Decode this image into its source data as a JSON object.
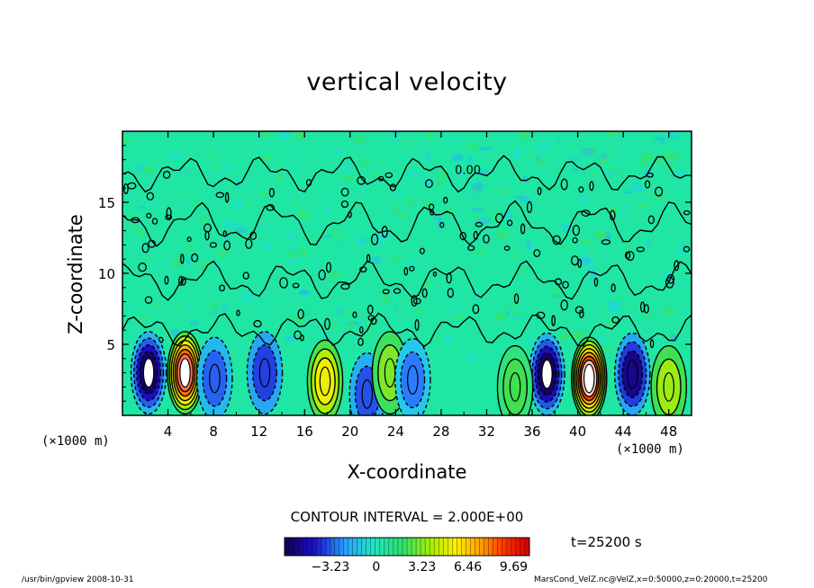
{
  "chart_data": {
    "type": "heatmap",
    "title": "vertical velocity",
    "xlabel": "X-coordinate",
    "ylabel": "Z-coordinate",
    "x_unit": "(×1000 m)",
    "xlim": [
      0,
      50
    ],
    "ylim": [
      0,
      20
    ],
    "x_ticks": [
      4,
      8,
      12,
      16,
      20,
      24,
      28,
      32,
      36,
      40,
      44,
      48
    ],
    "y_ticks": [
      5,
      10,
      15
    ],
    "contour_interval_label": "CONTOUR INTERVAL = 2.000E+00",
    "contour_label": "0.00",
    "colorbar": {
      "ticks": [
        -3.23,
        0,
        3.23,
        6.46,
        9.69
      ],
      "range": [
        -6.46,
        10.8
      ]
    },
    "time_label": "t=25200 s",
    "features": [
      {
        "x": 2.3,
        "z": 3.0,
        "value": -6.2
      },
      {
        "x": 5.5,
        "z": 3.0,
        "value": 9.9
      },
      {
        "x": 8.1,
        "z": 2.6,
        "value": -3.0
      },
      {
        "x": 12.5,
        "z": 3.0,
        "value": -3.6
      },
      {
        "x": 17.8,
        "z": 2.4,
        "value": 5.0
      },
      {
        "x": 21.5,
        "z": 1.5,
        "value": -3.3
      },
      {
        "x": 23.5,
        "z": 3.0,
        "value": 2.5
      },
      {
        "x": 25.5,
        "z": 2.5,
        "value": -2.5
      },
      {
        "x": 37.3,
        "z": 2.9,
        "value": -6.3
      },
      {
        "x": 41.0,
        "z": 2.6,
        "value": 10.5
      },
      {
        "x": 44.8,
        "z": 2.9,
        "value": -5.5
      },
      {
        "x": 48.0,
        "z": 2.0,
        "value": 3.0
      },
      {
        "x": 34.5,
        "z": 2.0,
        "value": 1.5
      }
    ]
  },
  "footer": {
    "left": "/usr/bin/gpview   2008-10-31",
    "right": "MarsCond_VelZ.nc@VelZ,x=0:50000,z=0:20000,t=25200"
  },
  "colors": {
    "background_field": "#1fe6a4",
    "positive_core": "#ff2a00",
    "negative_core": "#1a00a0",
    "contour_line": "#000000"
  }
}
